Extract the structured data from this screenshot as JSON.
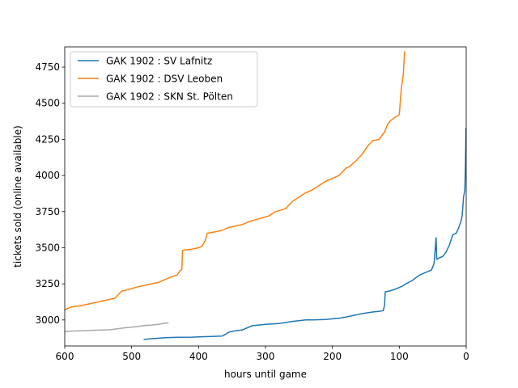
{
  "chart_data": {
    "type": "line",
    "title": "",
    "xlabel": "hours until game",
    "ylabel": "tickets sold (online available)",
    "xlim": [
      600,
      0
    ],
    "ylim": [
      2820,
      4890
    ],
    "x_inverted": true,
    "xticks": [
      600,
      500,
      400,
      300,
      200,
      100,
      0
    ],
    "yticks": [
      3000,
      3250,
      3500,
      3750,
      4000,
      4250,
      4500,
      4750
    ],
    "grid": false,
    "legend_position": "top-left",
    "series": [
      {
        "name": "GAK 1902 : SV Lafnitz",
        "color": "#1f77b4",
        "points": [
          [
            482,
            2865
          ],
          [
            475,
            2868
          ],
          [
            465,
            2872
          ],
          [
            450,
            2877
          ],
          [
            430,
            2880
          ],
          [
            410,
            2881
          ],
          [
            395,
            2884
          ],
          [
            380,
            2886
          ],
          [
            365,
            2888
          ],
          [
            360,
            2900
          ],
          [
            355,
            2915
          ],
          [
            345,
            2925
          ],
          [
            335,
            2930
          ],
          [
            330,
            2940
          ],
          [
            320,
            2960
          ],
          [
            310,
            2965
          ],
          [
            300,
            2970
          ],
          [
            290,
            2972
          ],
          [
            280,
            2975
          ],
          [
            270,
            2982
          ],
          [
            260,
            2990
          ],
          [
            250,
            2995
          ],
          [
            240,
            3000
          ],
          [
            230,
            3000
          ],
          [
            210,
            3003
          ],
          [
            200,
            3008
          ],
          [
            190,
            3012
          ],
          [
            180,
            3020
          ],
          [
            170,
            3030
          ],
          [
            160,
            3040
          ],
          [
            150,
            3048
          ],
          [
            140,
            3055
          ],
          [
            130,
            3060
          ],
          [
            124,
            3065
          ],
          [
            122,
            3100
          ],
          [
            121,
            3195
          ],
          [
            115,
            3200
          ],
          [
            105,
            3215
          ],
          [
            95,
            3235
          ],
          [
            90,
            3250
          ],
          [
            80,
            3275
          ],
          [
            70,
            3310
          ],
          [
            60,
            3330
          ],
          [
            52,
            3345
          ],
          [
            48,
            3390
          ],
          [
            45,
            3570
          ],
          [
            44,
            3420
          ],
          [
            40,
            3430
          ],
          [
            35,
            3440
          ],
          [
            30,
            3470
          ],
          [
            25,
            3520
          ],
          [
            20,
            3590
          ],
          [
            15,
            3600
          ],
          [
            12,
            3630
          ],
          [
            8,
            3680
          ],
          [
            6,
            3720
          ],
          [
            4,
            3850
          ],
          [
            2,
            3900
          ],
          [
            1,
            4100
          ],
          [
            0.3,
            4330
          ]
        ]
      },
      {
        "name": "GAK 1902 : DSV Leoben",
        "color": "#ff7f0e",
        "points": [
          [
            600,
            3070
          ],
          [
            590,
            3090
          ],
          [
            575,
            3100
          ],
          [
            560,
            3115
          ],
          [
            545,
            3130
          ],
          [
            535,
            3140
          ],
          [
            525,
            3150
          ],
          [
            515,
            3200
          ],
          [
            505,
            3210
          ],
          [
            490,
            3230
          ],
          [
            475,
            3245
          ],
          [
            460,
            3260
          ],
          [
            450,
            3280
          ],
          [
            440,
            3300
          ],
          [
            432,
            3310
          ],
          [
            428,
            3340
          ],
          [
            425,
            3350
          ],
          [
            424,
            3480
          ],
          [
            420,
            3485
          ],
          [
            410,
            3490
          ],
          [
            400,
            3500
          ],
          [
            395,
            3510
          ],
          [
            390,
            3550
          ],
          [
            387,
            3600
          ],
          [
            375,
            3610
          ],
          [
            365,
            3620
          ],
          [
            355,
            3640
          ],
          [
            345,
            3650
          ],
          [
            335,
            3660
          ],
          [
            325,
            3680
          ],
          [
            310,
            3700
          ],
          [
            295,
            3720
          ],
          [
            285,
            3750
          ],
          [
            270,
            3770
          ],
          [
            260,
            3820
          ],
          [
            250,
            3850
          ],
          [
            240,
            3880
          ],
          [
            230,
            3900
          ],
          [
            220,
            3930
          ],
          [
            210,
            3960
          ],
          [
            200,
            3980
          ],
          [
            190,
            4000
          ],
          [
            180,
            4050
          ],
          [
            175,
            4060
          ],
          [
            165,
            4100
          ],
          [
            155,
            4150
          ],
          [
            148,
            4200
          ],
          [
            140,
            4240
          ],
          [
            130,
            4250
          ],
          [
            122,
            4300
          ],
          [
            118,
            4350
          ],
          [
            113,
            4380
          ],
          [
            107,
            4400
          ],
          [
            100,
            4420
          ],
          [
            97,
            4600
          ],
          [
            94,
            4700
          ],
          [
            92,
            4860
          ]
        ]
      },
      {
        "name": "GAK 1902 : SKN St. Pölten",
        "color": "#a9a9a9",
        "points": [
          [
            600,
            2920
          ],
          [
            590,
            2923
          ],
          [
            575,
            2926
          ],
          [
            560,
            2928
          ],
          [
            545,
            2930
          ],
          [
            530,
            2933
          ],
          [
            520,
            2940
          ],
          [
            510,
            2946
          ],
          [
            500,
            2950
          ],
          [
            490,
            2955
          ],
          [
            480,
            2962
          ],
          [
            470,
            2965
          ],
          [
            460,
            2970
          ],
          [
            452,
            2976
          ],
          [
            445,
            2980
          ]
        ]
      }
    ]
  }
}
